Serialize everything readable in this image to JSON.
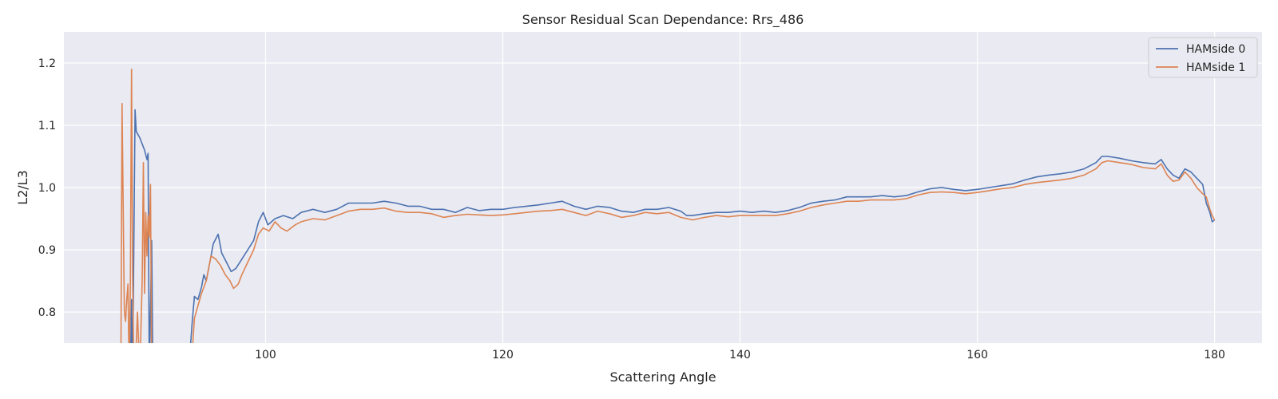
{
  "chart_data": {
    "type": "line",
    "title": "Sensor Residual Scan Dependance: Rrs_486",
    "xlabel": "Scattering Angle",
    "ylabel": "L2/L3",
    "xlim": [
      83,
      184
    ],
    "ylim": [
      0.75,
      1.25
    ],
    "xticks": [
      100,
      120,
      140,
      160,
      180
    ],
    "yticks": [
      0.8,
      0.9,
      1.0,
      1.1,
      1.2
    ],
    "grid": true,
    "legend_position": "top-right",
    "colors": {
      "background": "#eaeaf2",
      "grid": "#ffffff",
      "text": "#262626"
    },
    "series": [
      {
        "name": "HAMside 0",
        "color": "#4c72b0",
        "points": [
          [
            88.6,
            0.7
          ],
          [
            88.7,
            0.82
          ],
          [
            88.8,
            0.7
          ],
          [
            89.0,
            1.125
          ],
          [
            89.1,
            1.09
          ],
          [
            89.4,
            1.08
          ],
          [
            89.8,
            1.06
          ],
          [
            90.0,
            1.045
          ],
          [
            90.1,
            1.055
          ],
          [
            90.2,
            0.7
          ],
          [
            90.4,
            0.915
          ],
          [
            90.5,
            0.7
          ],
          null,
          [
            93.5,
            0.7
          ],
          [
            93.8,
            0.78
          ],
          [
            94.0,
            0.825
          ],
          [
            94.3,
            0.82
          ],
          [
            94.6,
            0.84
          ],
          [
            94.8,
            0.86
          ],
          [
            95.0,
            0.85
          ],
          [
            95.3,
            0.88
          ],
          [
            95.6,
            0.91
          ],
          [
            96.0,
            0.925
          ],
          [
            96.3,
            0.895
          ],
          [
            96.7,
            0.88
          ],
          [
            97.1,
            0.865
          ],
          [
            97.5,
            0.87
          ],
          [
            98.0,
            0.885
          ],
          [
            98.5,
            0.9
          ],
          [
            99.0,
            0.915
          ],
          [
            99.4,
            0.945
          ],
          [
            99.8,
            0.96
          ],
          [
            100.2,
            0.94
          ],
          [
            100.8,
            0.95
          ],
          [
            101.5,
            0.955
          ],
          [
            102.3,
            0.95
          ],
          [
            103,
            0.96
          ],
          [
            104,
            0.965
          ],
          [
            105,
            0.96
          ],
          [
            106,
            0.965
          ],
          [
            107,
            0.975
          ],
          [
            108,
            0.975
          ],
          [
            109,
            0.975
          ],
          [
            110,
            0.978
          ],
          [
            111,
            0.975
          ],
          [
            112,
            0.97
          ],
          [
            113,
            0.97
          ],
          [
            114,
            0.965
          ],
          [
            115,
            0.965
          ],
          [
            116,
            0.96
          ],
          [
            117,
            0.968
          ],
          [
            118,
            0.963
          ],
          [
            119,
            0.965
          ],
          [
            120,
            0.965
          ],
          [
            121,
            0.968
          ],
          [
            122,
            0.97
          ],
          [
            123,
            0.972
          ],
          [
            124,
            0.975
          ],
          [
            125,
            0.978
          ],
          [
            126,
            0.97
          ],
          [
            127,
            0.965
          ],
          [
            128,
            0.97
          ],
          [
            129,
            0.968
          ],
          [
            130,
            0.962
          ],
          [
            131,
            0.96
          ],
          [
            132,
            0.965
          ],
          [
            133,
            0.965
          ],
          [
            134,
            0.968
          ],
          [
            135,
            0.962
          ],
          [
            135.5,
            0.955
          ],
          [
            136,
            0.955
          ],
          [
            137,
            0.958
          ],
          [
            138,
            0.96
          ],
          [
            139,
            0.96
          ],
          [
            140,
            0.962
          ],
          [
            141,
            0.96
          ],
          [
            142,
            0.962
          ],
          [
            143,
            0.96
          ],
          [
            144,
            0.963
          ],
          [
            145,
            0.968
          ],
          [
            146,
            0.975
          ],
          [
            147,
            0.978
          ],
          [
            148,
            0.98
          ],
          [
            149,
            0.985
          ],
          [
            150,
            0.985
          ],
          [
            151,
            0.985
          ],
          [
            152,
            0.987
          ],
          [
            153,
            0.985
          ],
          [
            154,
            0.987
          ],
          [
            155,
            0.993
          ],
          [
            156,
            0.998
          ],
          [
            157,
            1.0
          ],
          [
            158,
            0.997
          ],
          [
            159,
            0.995
          ],
          [
            160,
            0.997
          ],
          [
            161,
            1.0
          ],
          [
            162,
            1.003
          ],
          [
            163,
            1.006
          ],
          [
            164,
            1.012
          ],
          [
            165,
            1.017
          ],
          [
            166,
            1.02
          ],
          [
            167,
            1.022
          ],
          [
            168,
            1.025
          ],
          [
            169,
            1.03
          ],
          [
            170,
            1.04
          ],
          [
            170.5,
            1.05
          ],
          [
            171,
            1.05
          ],
          [
            172,
            1.047
          ],
          [
            173,
            1.043
          ],
          [
            174,
            1.04
          ],
          [
            175,
            1.038
          ],
          [
            175.5,
            1.045
          ],
          [
            176,
            1.03
          ],
          [
            176.5,
            1.02
          ],
          [
            177,
            1.015
          ],
          [
            177.5,
            1.03
          ],
          [
            178,
            1.025
          ],
          [
            178.5,
            1.015
          ],
          [
            179,
            1.005
          ],
          [
            179.3,
            0.975
          ],
          [
            179.6,
            0.96
          ],
          [
            179.8,
            0.945
          ],
          [
            180,
            0.948
          ]
        ]
      },
      {
        "name": "HAMside 1",
        "color": "#dd8452",
        "points": [
          [
            87.8,
            0.7
          ],
          [
            87.9,
            1.135
          ],
          [
            88.0,
            0.96
          ],
          [
            88.1,
            0.8
          ],
          [
            88.2,
            0.785
          ],
          [
            88.3,
            0.82
          ],
          [
            88.4,
            0.845
          ],
          [
            88.5,
            0.7
          ],
          [
            88.6,
            0.845
          ],
          [
            88.7,
            1.19
          ],
          [
            88.8,
            0.85
          ],
          [
            88.9,
            0.7
          ],
          [
            89.0,
            0.7
          ],
          [
            89.2,
            0.8
          ],
          [
            89.4,
            0.7
          ],
          [
            89.6,
            0.85
          ],
          [
            89.7,
            1.04
          ],
          [
            89.8,
            0.83
          ],
          [
            89.9,
            0.96
          ],
          [
            90.0,
            0.89
          ],
          [
            90.1,
            0.955
          ],
          [
            90.2,
            0.92
          ],
          [
            90.3,
            1.005
          ],
          [
            90.4,
            0.7
          ],
          null,
          [
            93.7,
            0.7
          ],
          [
            94.0,
            0.79
          ],
          [
            94.3,
            0.81
          ],
          [
            94.6,
            0.83
          ],
          [
            95.0,
            0.85
          ],
          [
            95.4,
            0.89
          ],
          [
            95.8,
            0.885
          ],
          [
            96.2,
            0.875
          ],
          [
            96.6,
            0.86
          ],
          [
            97.0,
            0.85
          ],
          [
            97.3,
            0.838
          ],
          [
            97.7,
            0.845
          ],
          [
            98.0,
            0.86
          ],
          [
            98.5,
            0.88
          ],
          [
            99.0,
            0.9
          ],
          [
            99.4,
            0.925
          ],
          [
            99.8,
            0.935
          ],
          [
            100.3,
            0.93
          ],
          [
            100.8,
            0.945
          ],
          [
            101.3,
            0.935
          ],
          [
            101.8,
            0.93
          ],
          [
            102.5,
            0.94
          ],
          [
            103,
            0.945
          ],
          [
            104,
            0.95
          ],
          [
            105,
            0.948
          ],
          [
            106,
            0.955
          ],
          [
            107,
            0.962
          ],
          [
            108,
            0.965
          ],
          [
            109,
            0.965
          ],
          [
            110,
            0.967
          ],
          [
            111,
            0.962
          ],
          [
            112,
            0.96
          ],
          [
            113,
            0.96
          ],
          [
            114,
            0.958
          ],
          [
            115,
            0.952
          ],
          [
            116,
            0.955
          ],
          [
            117,
            0.957
          ],
          [
            118,
            0.956
          ],
          [
            119,
            0.955
          ],
          [
            120,
            0.956
          ],
          [
            121,
            0.958
          ],
          [
            122,
            0.96
          ],
          [
            123,
            0.962
          ],
          [
            124,
            0.963
          ],
          [
            125,
            0.965
          ],
          [
            126,
            0.96
          ],
          [
            127,
            0.955
          ],
          [
            128,
            0.962
          ],
          [
            129,
            0.958
          ],
          [
            130,
            0.952
          ],
          [
            131,
            0.955
          ],
          [
            132,
            0.96
          ],
          [
            133,
            0.958
          ],
          [
            134,
            0.96
          ],
          [
            135,
            0.952
          ],
          [
            135.5,
            0.95
          ],
          [
            136,
            0.948
          ],
          [
            137,
            0.952
          ],
          [
            138,
            0.955
          ],
          [
            139,
            0.953
          ],
          [
            140,
            0.955
          ],
          [
            141,
            0.955
          ],
          [
            142,
            0.955
          ],
          [
            143,
            0.955
          ],
          [
            144,
            0.958
          ],
          [
            145,
            0.962
          ],
          [
            146,
            0.968
          ],
          [
            147,
            0.972
          ],
          [
            148,
            0.975
          ],
          [
            149,
            0.978
          ],
          [
            150,
            0.978
          ],
          [
            151,
            0.98
          ],
          [
            152,
            0.98
          ],
          [
            153,
            0.98
          ],
          [
            154,
            0.982
          ],
          [
            155,
            0.988
          ],
          [
            156,
            0.992
          ],
          [
            157,
            0.993
          ],
          [
            158,
            0.992
          ],
          [
            159,
            0.99
          ],
          [
            160,
            0.992
          ],
          [
            161,
            0.995
          ],
          [
            162,
            0.998
          ],
          [
            163,
            1.0
          ],
          [
            164,
            1.005
          ],
          [
            165,
            1.008
          ],
          [
            166,
            1.01
          ],
          [
            167,
            1.012
          ],
          [
            168,
            1.015
          ],
          [
            169,
            1.02
          ],
          [
            170,
            1.03
          ],
          [
            170.5,
            1.04
          ],
          [
            171,
            1.043
          ],
          [
            172,
            1.04
          ],
          [
            173,
            1.037
          ],
          [
            174,
            1.032
          ],
          [
            175,
            1.03
          ],
          [
            175.5,
            1.038
          ],
          [
            176,
            1.02
          ],
          [
            176.5,
            1.01
          ],
          [
            177,
            1.012
          ],
          [
            177.5,
            1.025
          ],
          [
            178,
            1.015
          ],
          [
            178.5,
            1.0
          ],
          [
            179,
            0.99
          ],
          [
            179.3,
            0.985
          ],
          [
            179.6,
            0.965
          ],
          [
            179.8,
            0.955
          ],
          [
            180,
            0.948
          ]
        ]
      }
    ]
  }
}
